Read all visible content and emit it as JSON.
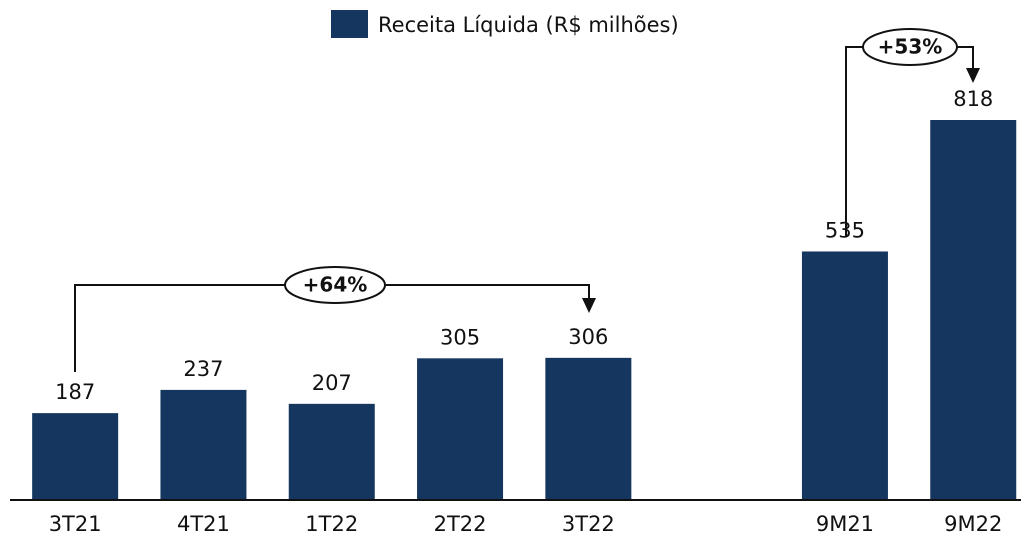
{
  "chart_data": {
    "type": "bar",
    "categories": [
      "3T21",
      "4T21",
      "1T22",
      "2T22",
      "3T22",
      null,
      "9M21",
      "9M22"
    ],
    "series": [
      {
        "name": "Receita Líquida (R$ milhões)",
        "color": "#15365e",
        "values": [
          187,
          237,
          207,
          305,
          306,
          null,
          535,
          818
        ]
      }
    ],
    "annotations": [
      "+64%",
      "+53%"
    ]
  }
}
